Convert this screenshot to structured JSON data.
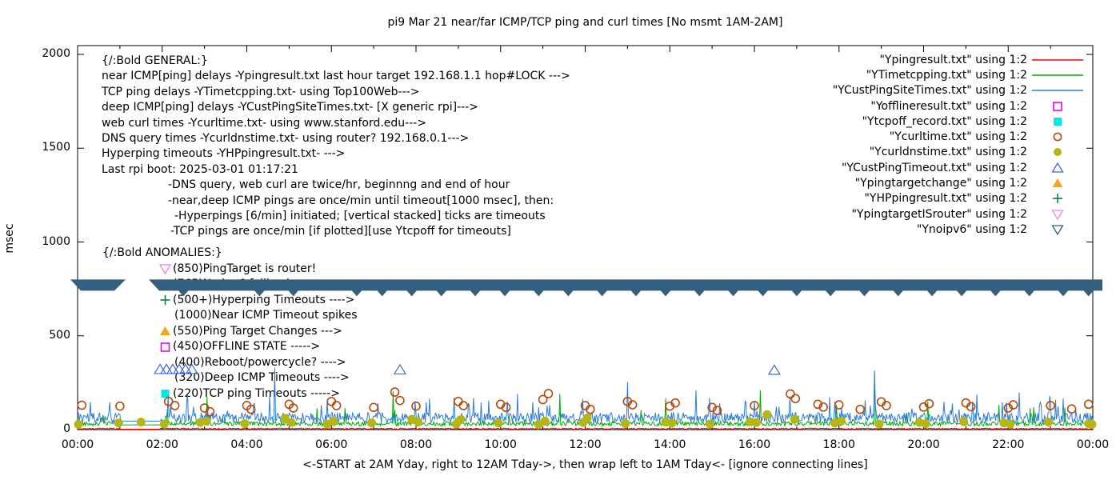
{
  "title": "pi9 Mar 21  near/far ICMP/TCP ping and curl times [No msmt 1AM-2AM]",
  "axes": {
    "ylabel": "msec",
    "xlabel": "<-START at 2AM Yday, right to 12AM Tday->, then wrap left to 1AM Tday<- [ignore connecting lines]",
    "y_ticks": [
      "0",
      "500",
      "1000",
      "1500",
      "2000"
    ],
    "x_ticks": [
      "00:00",
      "02:00",
      "04:00",
      "06:00",
      "08:00",
      "10:00",
      "12:00",
      "14:00",
      "16:00",
      "18:00",
      "20:00",
      "22:00",
      "00:00"
    ]
  },
  "legend": {
    "entries": [
      {
        "label": "\"Ypingresult.txt\" using 1:2",
        "marker": "line",
        "color": "#ff0000"
      },
      {
        "label": "\"YTimetcpping.txt\" using 1:2",
        "marker": "line",
        "color": "#00ad00"
      },
      {
        "label": "\"YCustPingSiteTimes.txt\" using 1:2",
        "marker": "line",
        "color": "#2e7bd6"
      },
      {
        "label": "\"Yofflineresult.txt\" using 1:2",
        "marker": "square-open",
        "color": "#ee00ee"
      },
      {
        "label": "\"Ytcpoff_record.txt\" using 1:2",
        "marker": "square-filled",
        "color": "#00e8e8"
      },
      {
        "label": "\"Ycurltime.txt\" using 1:2",
        "marker": "circle-open",
        "color": "#b54a0e"
      },
      {
        "label": "\"Ycurldnstime.txt\" using 1:2",
        "marker": "circle-filled",
        "color": "#b5b513"
      },
      {
        "label": "\"YCustPingTimeout.txt\" using 1:2",
        "marker": "tri-up-open",
        "color": "#4169e1"
      },
      {
        "label": "\"Ypingtargetchange\" using 1:2",
        "marker": "tri-up-filled",
        "color": "#f3a71b"
      },
      {
        "label": "\"YHPpingresult.txt\" using 1:2",
        "marker": "plus",
        "color": "#157a42"
      },
      {
        "label": "\"YpingtargetISrouter\" using 1:2",
        "marker": "tri-down-open",
        "color": "#ee82ee"
      },
      {
        "label": "\"Ynoipv6\" using 1:2",
        "marker": "tri-down-open",
        "color": "#336080"
      }
    ]
  },
  "notes": {
    "general": {
      "lines": [
        {
          "text": "{/:Bold GENERAL:}",
          "indent": 0
        },
        {
          "text": "near ICMP[ping] delays -Ypingresult.txt last hour target 192.168.1.1 hop#LOCK --->",
          "indent": 0
        },
        {
          "text": "TCP ping delays -YTimetcpping.txt- using Top100Web--->",
          "indent": 0
        },
        {
          "text": "deep ICMP[ping] delays -YCustPingSiteTimes.txt- [X generic rpi]--->",
          "indent": 0
        },
        {
          "text": "web curl times -Ycurltime.txt- using www.stanford.edu--->",
          "indent": 0
        },
        {
          "text": "DNS query times -Ycurldnstime.txt- using router? 192.168.0.1--->",
          "indent": 0
        },
        {
          "text": "Hyperping timeouts -YHPpingresult.txt- --->",
          "indent": 0
        },
        {
          "text": "Last rpi boot: 2025-03-01 01:17:21",
          "indent": 0
        },
        {
          "text": "-DNS query, web curl are twice/hr, beginnng and end of hour",
          "indent": 83
        },
        {
          "text": "-near,deep ICMP pings are once/min until timeout[1000 msec], then:",
          "indent": 83
        },
        {
          "text": "-Hyperpings [6/min] initiated; [vertical stacked] ticks are timeouts",
          "indent": 91
        },
        {
          "text": "-TCP pings are once/min [if plotted][use Ytcpoff for timeouts]",
          "indent": 86
        }
      ]
    },
    "anomalies": {
      "lines": [
        {
          "text": "{/:Bold ANOMALIES:}",
          "marker": "none",
          "indent": 0
        },
        {
          "text": "(850)PingTarget is router!",
          "marker": "tri-down-open",
          "color": "#ee82ee",
          "indent": 71
        },
        {
          "text": "(765)No ipv6 fallback ---->",
          "marker": "tri-down-open",
          "color": "#336080",
          "indent": 71
        },
        {
          "text": "(500+)Hyperping Timeouts ---->",
          "marker": "plus",
          "color": "#157a42",
          "indent": 71
        },
        {
          "text": "(1000)Near ICMP Timeout spikes",
          "marker": "none",
          "indent": 90
        },
        {
          "text": "(550)Ping Target Changes --->",
          "marker": "tri-up-filled",
          "color": "#f3a71b",
          "indent": 71
        },
        {
          "text": "(450)OFFLINE STATE ----->",
          "marker": "square-open",
          "color": "#ee00ee",
          "indent": 71
        },
        {
          "text": "(400)Reboot/powercycle? ---->",
          "marker": "none",
          "indent": 90
        },
        {
          "text": "(320)Deep ICMP Timeouts ---->",
          "marker": "none",
          "indent": 90
        },
        {
          "text": "(220)TCP ping Timeouts ----->",
          "marker": "square-filled",
          "color": "#00e8e8",
          "indent": 71
        }
      ]
    }
  },
  "chart_data": {
    "type": "line",
    "title": "pi9 Mar 21  near/far ICMP/TCP ping and curl times [No msmt 1AM-2AM]",
    "xlabel": "<-START at 2AM Yday, right to 12AM Tday->, then wrap left to 1AM Tday<- [ignore connecting lines]",
    "ylabel": "msec",
    "ylim": [
      0,
      2000
    ],
    "xlim_hours": [
      0,
      24
    ],
    "grid": false,
    "legend_position": "top-right",
    "no_measurement_window_hours": [
      1,
      2
    ],
    "render": {
      "step_h": 0.02,
      "seed": 42,
      "gap": [
        1.02,
        1.96
      ],
      "gap_hold": {
        "blue": 45,
        "green": 25,
        "red": 2
      }
    },
    "series": [
      {
        "name": "Ypingresult.txt",
        "style": "line",
        "color": "#ff0000",
        "baseline_msec": 2,
        "noise_msec": 3,
        "spikes": []
      },
      {
        "name": "YTimetcpping.txt",
        "style": "line",
        "color": "#00ad00",
        "baseline_msec": 20,
        "noise_msec": 12,
        "spikes": [
          [
            3.05,
            175
          ],
          [
            7.45,
            205
          ],
          [
            11.4,
            190
          ],
          [
            13.9,
            165
          ],
          [
            16.15,
            210
          ],
          [
            18.84,
            300
          ],
          [
            20.1,
            150
          ],
          [
            22.6,
            120
          ]
        ]
      },
      {
        "name": "YCustPingSiteTimes.txt",
        "style": "line",
        "color": "#2e7bd6",
        "baseline_msec": 35,
        "noise_msec": 28,
        "spikes": [
          [
            2.6,
            185
          ],
          [
            4.65,
            330
          ],
          [
            5.9,
            160
          ],
          [
            7.1,
            140
          ],
          [
            8.9,
            170
          ],
          [
            10.4,
            190
          ],
          [
            13.0,
            255
          ],
          [
            14.62,
            210
          ],
          [
            16.0,
            150
          ],
          [
            18.84,
            315
          ],
          [
            21.15,
            150
          ],
          [
            23.3,
            165
          ]
        ]
      },
      {
        "name": "Ycurltime.txt",
        "style": "open-circle",
        "color": "#b54a0e",
        "points": [
          [
            0.1,
            130
          ],
          [
            1.0,
            125
          ],
          [
            2.15,
            150
          ],
          [
            2.3,
            128
          ],
          [
            3.0,
            115
          ],
          [
            3.13,
            95
          ],
          [
            4.0,
            128
          ],
          [
            4.1,
            108
          ],
          [
            5.0,
            135
          ],
          [
            5.1,
            115
          ],
          [
            6.0,
            150
          ],
          [
            6.12,
            128
          ],
          [
            7.0,
            118
          ],
          [
            7.5,
            200
          ],
          [
            7.62,
            155
          ],
          [
            8.0,
            125
          ],
          [
            9.0,
            150
          ],
          [
            9.12,
            128
          ],
          [
            10.0,
            135
          ],
          [
            10.13,
            118
          ],
          [
            11.0,
            160
          ],
          [
            11.13,
            192
          ],
          [
            12.0,
            128
          ],
          [
            12.12,
            108
          ],
          [
            13.0,
            150
          ],
          [
            13.12,
            132
          ],
          [
            14.0,
            125
          ],
          [
            14.13,
            142
          ],
          [
            15.0,
            118
          ],
          [
            15.12,
            102
          ],
          [
            16.0,
            128
          ],
          [
            16.85,
            190
          ],
          [
            16.97,
            165
          ],
          [
            17.5,
            135
          ],
          [
            17.63,
            120
          ],
          [
            18.0,
            132
          ],
          [
            18.5,
            108
          ],
          [
            19.0,
            148
          ],
          [
            19.12,
            128
          ],
          [
            20.0,
            120
          ],
          [
            20.13,
            138
          ],
          [
            21.0,
            142
          ],
          [
            21.12,
            122
          ],
          [
            22.0,
            115
          ],
          [
            22.12,
            132
          ],
          [
            23.0,
            128
          ],
          [
            23.5,
            110
          ],
          [
            23.9,
            135
          ]
        ]
      },
      {
        "name": "Ycurldnstime.txt",
        "style": "filled-circle",
        "color": "#b5b513",
        "points": [
          [
            0.02,
            28
          ],
          [
            0.97,
            35
          ],
          [
            1.5,
            40
          ],
          [
            2.05,
            30
          ],
          [
            2.9,
            38
          ],
          [
            3.05,
            45
          ],
          [
            3.95,
            32
          ],
          [
            4.9,
            60
          ],
          [
            5.05,
            38
          ],
          [
            5.9,
            30
          ],
          [
            6.05,
            42
          ],
          [
            6.95,
            35
          ],
          [
            7.9,
            55
          ],
          [
            8.05,
            40
          ],
          [
            8.95,
            30
          ],
          [
            9.05,
            52
          ],
          [
            9.95,
            35
          ],
          [
            10.9,
            28
          ],
          [
            11.05,
            45
          ],
          [
            11.95,
            38
          ],
          [
            12.05,
            62
          ],
          [
            12.95,
            32
          ],
          [
            13.9,
            40
          ],
          [
            14.05,
            35
          ],
          [
            14.95,
            30
          ],
          [
            15.9,
            42
          ],
          [
            16.05,
            38
          ],
          [
            16.3,
            80
          ],
          [
            16.95,
            55
          ],
          [
            17.9,
            35
          ],
          [
            18.05,
            45
          ],
          [
            18.95,
            30
          ],
          [
            19.9,
            38
          ],
          [
            20.05,
            32
          ],
          [
            20.95,
            42
          ],
          [
            21.9,
            35
          ],
          [
            22.05,
            30
          ],
          [
            22.95,
            40
          ],
          [
            23.9,
            32
          ],
          [
            23.98,
            28
          ]
        ]
      },
      {
        "name": "YCustPingTimeout.txt",
        "style": "open-triangle-up",
        "color": "#4169e1",
        "points": [
          [
            1.95,
            320
          ],
          [
            2.1,
            320
          ],
          [
            2.25,
            320
          ],
          [
            2.4,
            320
          ],
          [
            2.55,
            320
          ],
          [
            2.7,
            320
          ],
          [
            7.62,
            318
          ],
          [
            16.47,
            316
          ]
        ]
      },
      {
        "name": "Ynoipv6",
        "style": "band-of-down-triangles",
        "color": "#336080",
        "value_msec": 770,
        "segments_hours": [
          [
            -0.15,
            1.15
          ],
          [
            1.68,
            24.2
          ]
        ],
        "notch_hours": [
          2.5,
          4.3,
          5.1,
          6.6,
          7.2,
          7.9,
          8.6,
          9.4,
          10.1,
          10.9,
          11.6,
          12.4,
          13.2,
          13.9,
          14.7,
          15.5,
          16.2,
          17.0,
          17.8,
          18.6,
          19.4,
          20.2,
          20.9,
          21.7,
          22.5,
          23.3,
          23.9
        ]
      }
    ]
  }
}
